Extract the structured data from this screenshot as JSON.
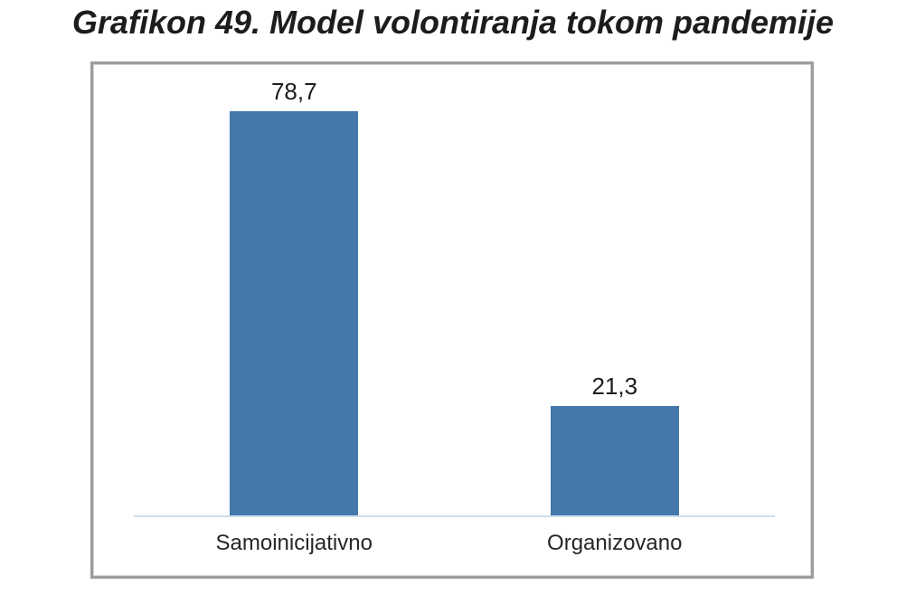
{
  "title": "Grafikon 49. Model volontiranja tokom pandemije",
  "chart_data": {
    "type": "bar",
    "title": "Grafikon 49. Model volontiranja tokom pandemije",
    "categories": [
      "Samoinicijativno",
      "Organizovano"
    ],
    "values": [
      78.7,
      21.3
    ],
    "value_labels": [
      "78,7",
      "21,3"
    ],
    "xlabel": "",
    "ylabel": "",
    "ylim": [
      0,
      88
    ],
    "grid": false,
    "legend": "none",
    "decimal_separator": ",",
    "colors": {
      "bar_fill": "#4478aa",
      "axis_line": "#cfdde9",
      "frame_border": "#9c9c9c",
      "title_text": "#1c1c1c",
      "label_text": "#262626",
      "background": "#ffffff"
    }
  }
}
